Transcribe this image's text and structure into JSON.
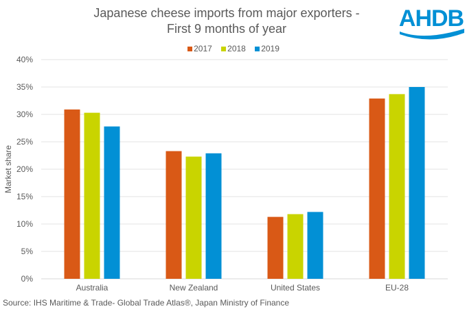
{
  "chart_data": {
    "type": "bar",
    "title": "Japanese cheese imports from major exporters - First 9 months of year",
    "title_lines": [
      "Japanese cheese imports from major exporters -",
      "First 9 months of year"
    ],
    "categories": [
      "Australia",
      "New Zealand",
      "United States",
      "EU-28"
    ],
    "series": [
      {
        "name": "2017",
        "color": "#D95916",
        "values": [
          30.9,
          23.3,
          11.3,
          32.9
        ]
      },
      {
        "name": "2018",
        "color": "#C9D400",
        "values": [
          30.3,
          22.3,
          11.8,
          33.7
        ]
      },
      {
        "name": "2019",
        "color": "#0290D5",
        "values": [
          27.8,
          22.9,
          12.2,
          35.0
        ]
      }
    ],
    "xlabel": "",
    "ylabel": "Market share",
    "ylim": [
      0,
      40
    ],
    "yticks": [
      "0%",
      "5%",
      "10%",
      "15%",
      "20%",
      "25%",
      "30%",
      "35%",
      "40%"
    ],
    "grid": true,
    "legend_position": "top"
  },
  "logo": "AHDB",
  "source": "Source:  IHS Maritime & Trade-  Global Trade  Atlas®, Japan  Ministry of Finance"
}
